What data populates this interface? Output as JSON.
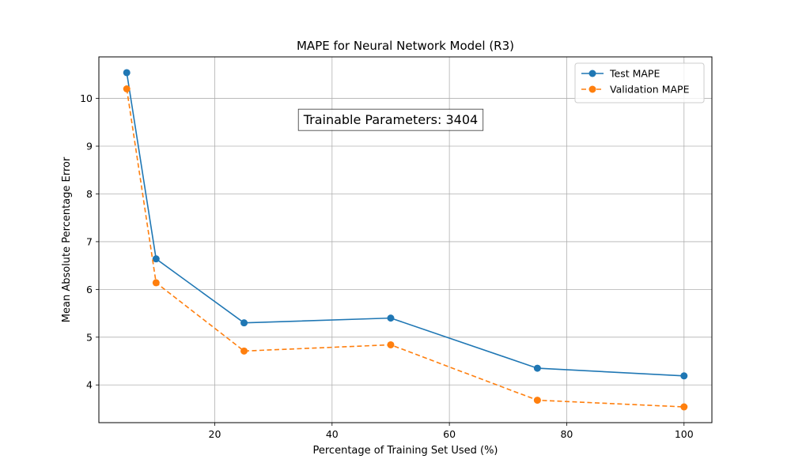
{
  "chart_data": {
    "type": "line",
    "title": "MAPE for Neural Network Model (R3)",
    "xlabel": "Percentage of Training Set Used (%)",
    "ylabel": "Mean Absolute Percentage Error",
    "x": [
      5,
      10,
      25,
      50,
      75,
      100
    ],
    "xlim": [
      0.25,
      104.75
    ],
    "ylim": [
      3.21,
      10.87
    ],
    "xticks": [
      20,
      40,
      60,
      80,
      100
    ],
    "yticks": [
      4,
      5,
      6,
      7,
      8,
      9,
      10
    ],
    "grid": true,
    "legend_position": "top-right",
    "series": [
      {
        "name": "Test MAPE",
        "values": [
          10.54,
          6.64,
          5.3,
          5.4,
          4.35,
          4.19
        ],
        "color": "#1f77b4",
        "linestyle": "solid",
        "marker": "circle"
      },
      {
        "name": "Validation MAPE",
        "values": [
          10.2,
          6.14,
          4.71,
          4.84,
          3.68,
          3.54
        ],
        "color": "#ff7f0e",
        "linestyle": "dashed",
        "marker": "circle"
      }
    ],
    "annotations": [
      {
        "text": "Trainable Parameters: 3404",
        "x": 50,
        "y": 9.56
      }
    ]
  }
}
